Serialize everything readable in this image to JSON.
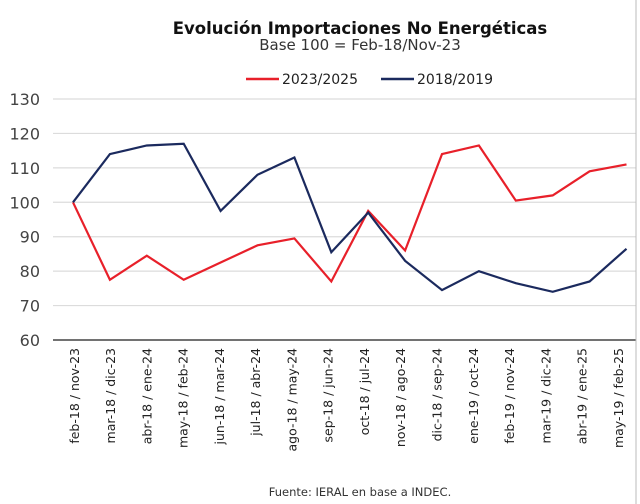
{
  "chart_data": {
    "type": "line",
    "title": "Evolución Importaciones No Energéticas",
    "subtitle": "Base 100 = Feb-18/Nov-23",
    "xlabel": "",
    "ylabel": "",
    "ylim": [
      60,
      130
    ],
    "yticks": [
      60,
      70,
      80,
      90,
      100,
      110,
      120,
      130
    ],
    "grid": true,
    "legend_position": "top",
    "categories": [
      "feb-18 / nov-23",
      "mar-18 / dic-23",
      "abr-18 / ene-24",
      "may-18 / feb-24",
      "jun-18 / mar-24",
      "jul-18 / abr-24",
      "ago-18 / may-24",
      "sep-18 / jun-24",
      "oct-18 / jul-24",
      "nov-18 / ago-24",
      "dic-18 / sep-24",
      "ene-19 / oct-24",
      "feb-19 / nov-24",
      "mar-19 / dic-24",
      "abr-19 / ene-25",
      "may-19 / feb-25"
    ],
    "series": [
      {
        "name": "2023/2025",
        "color": "#e8202a",
        "values": [
          100,
          77.5,
          84.5,
          77.5,
          82.5,
          87.5,
          89.5,
          77,
          97.5,
          86,
          114,
          116.5,
          100.5,
          102,
          109,
          111
        ]
      },
      {
        "name": "2018/2019",
        "color": "#1b2a5e",
        "values": [
          100,
          114,
          116.5,
          117,
          97.5,
          108,
          113,
          85.5,
          97,
          83,
          74.5,
          80,
          76.5,
          74,
          77,
          86.5
        ]
      }
    ],
    "source": "Fuente: IERAL en base a INDEC."
  }
}
